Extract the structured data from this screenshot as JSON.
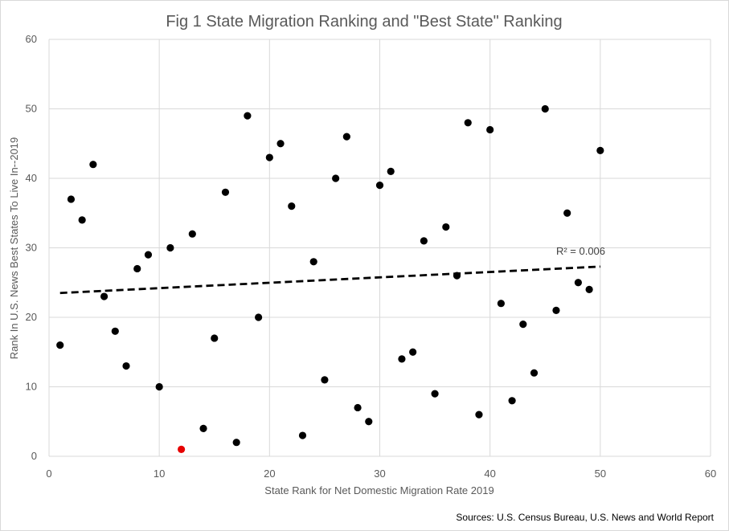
{
  "chart_data": {
    "type": "scatter",
    "title": "Fig 1 State Migration Ranking and \"Best State\" Ranking",
    "xlabel": "State Rank for Net Domestic Migration Rate 2019",
    "ylabel": "Rank In U.S. News Best States To Live In--2019",
    "xlim": [
      0,
      60
    ],
    "ylim": [
      0,
      60
    ],
    "xticks": [
      0,
      10,
      20,
      30,
      40,
      50,
      60
    ],
    "yticks": [
      0,
      10,
      20,
      30,
      40,
      50,
      60
    ],
    "grid": true,
    "series": [
      {
        "color": "#000000",
        "points": [
          [
            1,
            16
          ],
          [
            2,
            37
          ],
          [
            3,
            34
          ],
          [
            4,
            42
          ],
          [
            5,
            23
          ],
          [
            6,
            18
          ],
          [
            7,
            13
          ],
          [
            8,
            27
          ],
          [
            9,
            29
          ],
          [
            10,
            10
          ],
          [
            11,
            30
          ],
          [
            13,
            32
          ],
          [
            14,
            4
          ],
          [
            15,
            17
          ],
          [
            16,
            38
          ],
          [
            17,
            2
          ],
          [
            18,
            49
          ],
          [
            19,
            20
          ],
          [
            20,
            43
          ],
          [
            21,
            45
          ],
          [
            22,
            36
          ],
          [
            23,
            3
          ],
          [
            24,
            28
          ],
          [
            25,
            11
          ],
          [
            26,
            40
          ],
          [
            27,
            46
          ],
          [
            28,
            7
          ],
          [
            29,
            5
          ],
          [
            30,
            39
          ],
          [
            31,
            41
          ],
          [
            32,
            14
          ],
          [
            33,
            15
          ],
          [
            34,
            31
          ],
          [
            35,
            9
          ],
          [
            36,
            33
          ],
          [
            37,
            26
          ],
          [
            38,
            48
          ],
          [
            39,
            6
          ],
          [
            40,
            47
          ],
          [
            41,
            22
          ],
          [
            42,
            8
          ],
          [
            43,
            19
          ],
          [
            44,
            12
          ],
          [
            45,
            50
          ],
          [
            46,
            21
          ],
          [
            47,
            35
          ],
          [
            48,
            25
          ],
          [
            49,
            24
          ],
          [
            50,
            44
          ]
        ]
      },
      {
        "color": "#e60000",
        "points": [
          [
            12,
            1
          ]
        ]
      }
    ],
    "trendline": {
      "type": "linear",
      "x": [
        1,
        50
      ],
      "y": [
        23.5,
        27.3
      ],
      "style": "dashed",
      "color": "#000000",
      "label": "R² = 0.006"
    },
    "source": "Sources: U.S. Census Bureau, U.S. News and World Report"
  }
}
